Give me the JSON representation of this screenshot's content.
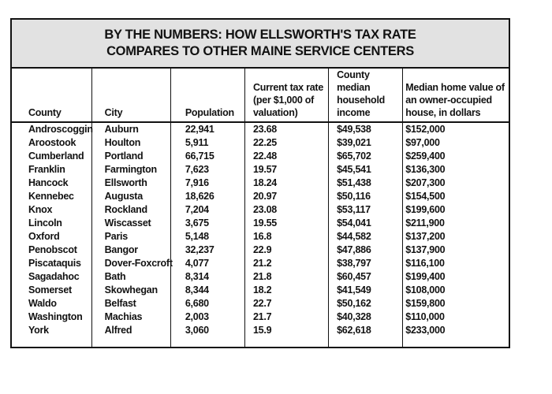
{
  "title": "BY THE NUMBERS: HOW ELLSWORTH'S TAX RATE\nCOMPARES TO OTHER MAINE SERVICE CENTERS",
  "colors": {
    "title_background": "#e2e2e2",
    "border": "#121212",
    "text": "#121212",
    "page_background": "#ffffff"
  },
  "chart_data": {
    "type": "table",
    "title": "BY THE NUMBERS: HOW ELLSWORTH'S TAX RATE COMPARES TO OTHER MAINE SERVICE CENTERS",
    "columns": [
      {
        "key": "county",
        "label": "County"
      },
      {
        "key": "city",
        "label": "City"
      },
      {
        "key": "population",
        "label": "Population"
      },
      {
        "key": "tax_rate",
        "label": "Current tax rate\n(per $1,000 of\nvaluation)"
      },
      {
        "key": "income",
        "label": "County median\nhousehold\nincome"
      },
      {
        "key": "home_value",
        "label": "Median home value of\nan owner-occupied\nhouse, in dollars"
      }
    ],
    "rows": [
      {
        "county": "Androscoggin",
        "city": "Auburn",
        "population": "22,941",
        "tax_rate": "23.68",
        "income": "$49,538",
        "home_value": "$152,000"
      },
      {
        "county": "Aroostook",
        "city": "Houlton",
        "population": "5,911",
        "tax_rate": "22.25",
        "income": "$39,021",
        "home_value": "$97,000"
      },
      {
        "county": "Cumberland",
        "city": "Portland",
        "population": "66,715",
        "tax_rate": "22.48",
        "income": "$65,702",
        "home_value": "$259,400"
      },
      {
        "county": "Franklin",
        "city": "Farmington",
        "population": "7,623",
        "tax_rate": "19.57",
        "income": "$45,541",
        "home_value": "$136,300"
      },
      {
        "county": "Hancock",
        "city": "Ellsworth",
        "population": "7,916",
        "tax_rate": "18.24",
        "income": "$51,438",
        "home_value": "$207,300"
      },
      {
        "county": "Kennebec",
        "city": "Augusta",
        "population": "18,626",
        "tax_rate": "20.97",
        "income": "$50,116",
        "home_value": "$154,500"
      },
      {
        "county": "Knox",
        "city": "Rockland",
        "population": "7,204",
        "tax_rate": "23.08",
        "income": "$53,117",
        "home_value": "$199,600"
      },
      {
        "county": "Lincoln",
        "city": "Wiscasset",
        "population": "3,675",
        "tax_rate": "19.55",
        "income": "$54,041",
        "home_value": "$211,900"
      },
      {
        "county": "Oxford",
        "city": "Paris",
        "population": "5,148",
        "tax_rate": "16.8",
        "income": "$44,582",
        "home_value": "$137,200"
      },
      {
        "county": "Penobscot",
        "city": "Bangor",
        "population": "32,237",
        "tax_rate": "22.9",
        "income": "$47,886",
        "home_value": "$137,900"
      },
      {
        "county": "Piscataquis",
        "city": "Dover-Foxcroft",
        "population": "4,077",
        "tax_rate": "21.2",
        "income": "$38,797",
        "home_value": "$116,100"
      },
      {
        "county": "Sagadahoc",
        "city": "Bath",
        "population": "8,314",
        "tax_rate": "21.8",
        "income": "$60,457",
        "home_value": "$199,400"
      },
      {
        "county": "Somerset",
        "city": "Skowhegan",
        "population": "8,344",
        "tax_rate": "18.2",
        "income": "$41,549",
        "home_value": "$108,000"
      },
      {
        "county": "Waldo",
        "city": "Belfast",
        "population": "6,680",
        "tax_rate": "22.7",
        "income": "$50,162",
        "home_value": "$159,800"
      },
      {
        "county": "Washington",
        "city": "Machias",
        "population": "2,003",
        "tax_rate": "21.7",
        "income": "$40,328",
        "home_value": "$110,000"
      },
      {
        "county": "York",
        "city": "Alfred",
        "population": "3,060",
        "tax_rate": "15.9",
        "income": "$62,618",
        "home_value": "$233,000"
      }
    ]
  }
}
